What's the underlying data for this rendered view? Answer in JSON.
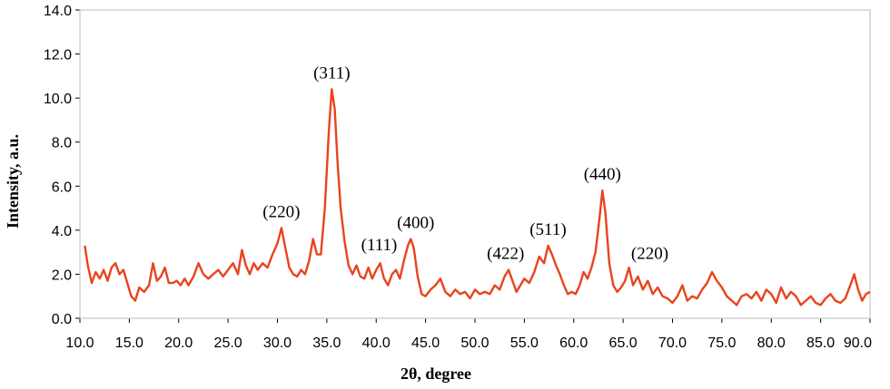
{
  "chart_data": {
    "type": "line",
    "title": "",
    "xlabel": "2θ, degree",
    "ylabel": "Intensity,  a.u.",
    "xlim": [
      10.0,
      90.0
    ],
    "ylim": [
      0.0,
      14.0
    ],
    "x_ticks": [
      "10.0",
      "15.0",
      "20.0",
      "25.0",
      "30.0",
      "35.0",
      "40.0",
      "45.0",
      "50.0",
      "55.0",
      "60.0",
      "65.0",
      "70.0",
      "75.0",
      "80.0",
      "85.0",
      "90.0"
    ],
    "y_ticks": [
      "0.0",
      "2.0",
      "4.0",
      "6.0",
      "8.0",
      "10.0",
      "12.0",
      "14.0"
    ],
    "grid": false,
    "line_color": "#E8441E",
    "series": [
      {
        "points": [
          [
            10.5,
            3.3
          ],
          [
            10.8,
            2.4
          ],
          [
            11.2,
            1.6
          ],
          [
            11.6,
            2.1
          ],
          [
            12.0,
            1.8
          ],
          [
            12.4,
            2.2
          ],
          [
            12.8,
            1.7
          ],
          [
            13.2,
            2.3
          ],
          [
            13.6,
            2.5
          ],
          [
            14.0,
            2.0
          ],
          [
            14.4,
            2.2
          ],
          [
            14.8,
            1.6
          ],
          [
            15.2,
            1.0
          ],
          [
            15.6,
            0.8
          ],
          [
            16.0,
            1.4
          ],
          [
            16.5,
            1.2
          ],
          [
            17.0,
            1.5
          ],
          [
            17.4,
            2.5
          ],
          [
            17.8,
            1.7
          ],
          [
            18.2,
            1.9
          ],
          [
            18.6,
            2.3
          ],
          [
            19.0,
            1.6
          ],
          [
            19.4,
            1.6
          ],
          [
            19.8,
            1.7
          ],
          [
            20.2,
            1.5
          ],
          [
            20.6,
            1.8
          ],
          [
            21.0,
            1.5
          ],
          [
            21.5,
            1.9
          ],
          [
            22.0,
            2.5
          ],
          [
            22.5,
            2.0
          ],
          [
            23.0,
            1.8
          ],
          [
            23.5,
            2.0
          ],
          [
            24.0,
            2.2
          ],
          [
            24.5,
            1.9
          ],
          [
            25.0,
            2.2
          ],
          [
            25.5,
            2.5
          ],
          [
            26.0,
            2.0
          ],
          [
            26.4,
            3.1
          ],
          [
            26.8,
            2.4
          ],
          [
            27.2,
            2.0
          ],
          [
            27.6,
            2.5
          ],
          [
            28.0,
            2.2
          ],
          [
            28.5,
            2.5
          ],
          [
            29.0,
            2.3
          ],
          [
            29.5,
            2.9
          ],
          [
            30.0,
            3.4
          ],
          [
            30.4,
            4.1
          ],
          [
            30.8,
            3.2
          ],
          [
            31.2,
            2.3
          ],
          [
            31.6,
            2.0
          ],
          [
            32.0,
            1.9
          ],
          [
            32.4,
            2.2
          ],
          [
            32.8,
            2.0
          ],
          [
            33.2,
            2.6
          ],
          [
            33.6,
            3.6
          ],
          [
            34.0,
            2.9
          ],
          [
            34.4,
            2.9
          ],
          [
            34.8,
            5.0
          ],
          [
            35.2,
            8.5
          ],
          [
            35.5,
            10.4
          ],
          [
            35.8,
            9.5
          ],
          [
            36.1,
            7.0
          ],
          [
            36.4,
            5.0
          ],
          [
            36.8,
            3.5
          ],
          [
            37.2,
            2.4
          ],
          [
            37.6,
            2.0
          ],
          [
            38.0,
            2.4
          ],
          [
            38.4,
            1.9
          ],
          [
            38.8,
            1.8
          ],
          [
            39.2,
            2.3
          ],
          [
            39.6,
            1.8
          ],
          [
            40.0,
            2.2
          ],
          [
            40.4,
            2.5
          ],
          [
            40.8,
            1.8
          ],
          [
            41.2,
            1.5
          ],
          [
            41.6,
            2.0
          ],
          [
            42.0,
            2.2
          ],
          [
            42.4,
            1.8
          ],
          [
            42.8,
            2.6
          ],
          [
            43.2,
            3.3
          ],
          [
            43.5,
            3.6
          ],
          [
            43.8,
            3.2
          ],
          [
            44.2,
            1.9
          ],
          [
            44.6,
            1.1
          ],
          [
            45.0,
            1.0
          ],
          [
            45.5,
            1.3
          ],
          [
            46.0,
            1.5
          ],
          [
            46.5,
            1.8
          ],
          [
            47.0,
            1.2
          ],
          [
            47.5,
            1.0
          ],
          [
            48.0,
            1.3
          ],
          [
            48.5,
            1.1
          ],
          [
            49.0,
            1.2
          ],
          [
            49.5,
            0.9
          ],
          [
            50.0,
            1.3
          ],
          [
            50.5,
            1.1
          ],
          [
            51.0,
            1.2
          ],
          [
            51.5,
            1.1
          ],
          [
            52.0,
            1.5
          ],
          [
            52.5,
            1.3
          ],
          [
            53.0,
            1.9
          ],
          [
            53.4,
            2.2
          ],
          [
            53.8,
            1.7
          ],
          [
            54.2,
            1.2
          ],
          [
            54.6,
            1.5
          ],
          [
            55.0,
            1.8
          ],
          [
            55.5,
            1.6
          ],
          [
            56.0,
            2.1
          ],
          [
            56.5,
            2.8
          ],
          [
            57.0,
            2.5
          ],
          [
            57.4,
            3.3
          ],
          [
            57.8,
            2.9
          ],
          [
            58.2,
            2.4
          ],
          [
            58.6,
            2.0
          ],
          [
            59.0,
            1.5
          ],
          [
            59.4,
            1.1
          ],
          [
            59.8,
            1.2
          ],
          [
            60.2,
            1.1
          ],
          [
            60.6,
            1.5
          ],
          [
            61.0,
            2.1
          ],
          [
            61.4,
            1.8
          ],
          [
            61.8,
            2.3
          ],
          [
            62.2,
            3.0
          ],
          [
            62.6,
            4.5
          ],
          [
            62.9,
            5.8
          ],
          [
            63.2,
            4.8
          ],
          [
            63.6,
            2.5
          ],
          [
            64.0,
            1.5
          ],
          [
            64.4,
            1.2
          ],
          [
            64.8,
            1.4
          ],
          [
            65.2,
            1.7
          ],
          [
            65.6,
            2.3
          ],
          [
            66.0,
            1.5
          ],
          [
            66.5,
            1.9
          ],
          [
            67.0,
            1.3
          ],
          [
            67.5,
            1.7
          ],
          [
            68.0,
            1.1
          ],
          [
            68.5,
            1.4
          ],
          [
            69.0,
            1.0
          ],
          [
            69.5,
            0.9
          ],
          [
            70.0,
            0.7
          ],
          [
            70.5,
            1.0
          ],
          [
            71.0,
            1.5
          ],
          [
            71.5,
            0.8
          ],
          [
            72.0,
            1.0
          ],
          [
            72.5,
            0.9
          ],
          [
            73.0,
            1.3
          ],
          [
            73.5,
            1.6
          ],
          [
            74.0,
            2.1
          ],
          [
            74.5,
            1.7
          ],
          [
            75.0,
            1.4
          ],
          [
            75.5,
            1.0
          ],
          [
            76.0,
            0.8
          ],
          [
            76.5,
            0.6
          ],
          [
            77.0,
            1.0
          ],
          [
            77.5,
            1.1
          ],
          [
            78.0,
            0.9
          ],
          [
            78.5,
            1.2
          ],
          [
            79.0,
            0.8
          ],
          [
            79.5,
            1.3
          ],
          [
            80.0,
            1.1
          ],
          [
            80.5,
            0.7
          ],
          [
            81.0,
            1.4
          ],
          [
            81.5,
            0.9
          ],
          [
            82.0,
            1.2
          ],
          [
            82.5,
            1.0
          ],
          [
            83.0,
            0.6
          ],
          [
            83.5,
            0.8
          ],
          [
            84.0,
            1.0
          ],
          [
            84.5,
            0.7
          ],
          [
            85.0,
            0.6
          ],
          [
            85.5,
            0.9
          ],
          [
            86.0,
            1.1
          ],
          [
            86.5,
            0.8
          ],
          [
            87.0,
            0.7
          ],
          [
            87.5,
            0.9
          ],
          [
            88.0,
            1.5
          ],
          [
            88.4,
            2.0
          ],
          [
            88.8,
            1.3
          ],
          [
            89.2,
            0.8
          ],
          [
            89.6,
            1.1
          ],
          [
            90.0,
            1.2
          ]
        ]
      }
    ],
    "annotations": [
      {
        "text": "(220)",
        "x": 30.4,
        "y": 4.1
      },
      {
        "text": "(311)",
        "x": 35.5,
        "y": 10.4
      },
      {
        "text": "(111)",
        "x": 40.3,
        "y": 2.6
      },
      {
        "text": "(400)",
        "x": 44.0,
        "y": 3.6
      },
      {
        "text": "(422)",
        "x": 53.1,
        "y": 2.2
      },
      {
        "text": "(511)",
        "x": 57.4,
        "y": 3.3
      },
      {
        "text": "(440)",
        "x": 62.9,
        "y": 5.8
      },
      {
        "text": "(220)",
        "x": 67.7,
        "y": 2.2
      }
    ]
  }
}
